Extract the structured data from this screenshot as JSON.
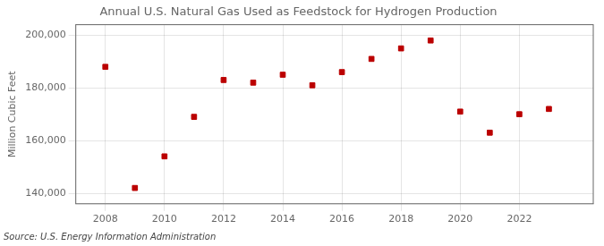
{
  "chart_data": {
    "type": "scatter",
    "title": "Annual U.S. Natural Gas Used as Feedstock for Hydrogen Production",
    "ylabel": "Million Cubic Feet",
    "annotation": "Source: U.S. Energy Information Administration",
    "x": [
      2008,
      2009,
      2010,
      2011,
      2012,
      2013,
      2014,
      2015,
      2016,
      2017,
      2018,
      2019,
      2020,
      2021,
      2022,
      2023
    ],
    "values": [
      188000,
      142000,
      154000,
      169000,
      183000,
      182000,
      185000,
      181000,
      186000,
      191000,
      195000,
      198000,
      171000,
      163000,
      170000,
      172000
    ],
    "color": "#bb0000",
    "marker": "square",
    "xlim": [
      2007.0,
      2024.5
    ],
    "xticks": [
      2008,
      2010,
      2012,
      2014,
      2016,
      2018,
      2020,
      2022
    ],
    "ylim": [
      136000,
      204000
    ],
    "yticks": [
      {
        "value": 140000,
        "label": "140,000"
      },
      {
        "value": 160000,
        "label": "160,000"
      },
      {
        "value": 180000,
        "label": "180,000"
      },
      {
        "value": 200000,
        "label": "200,000"
      }
    ],
    "grid": true
  }
}
